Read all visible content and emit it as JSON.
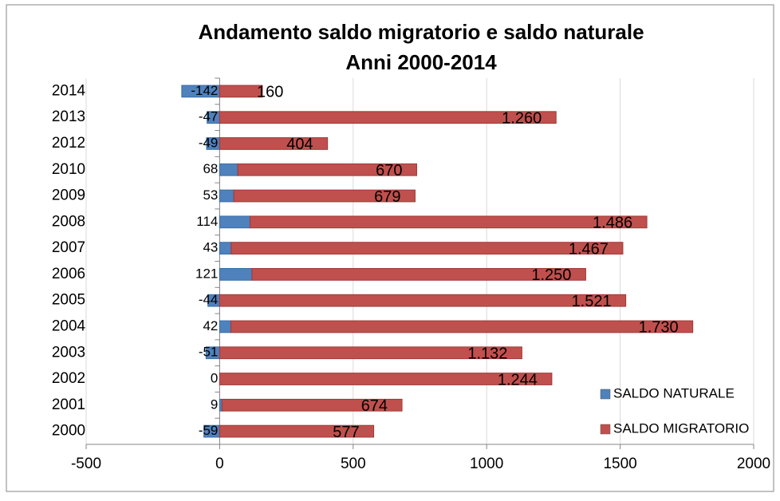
{
  "chart_data": {
    "type": "stacked-hbar",
    "title": [
      "Andamento saldo migratorio e saldo naturale",
      "Anni 2000-2014"
    ],
    "categories": [
      "2000",
      "2001",
      "2002",
      "2003",
      "2004",
      "2005",
      "2006",
      "2007",
      "2008",
      "2009",
      "2010",
      "2012",
      "2013",
      "2014"
    ],
    "series": [
      {
        "name": "SALDO NATURALE",
        "color": "#4f81bd",
        "values": [
          -59,
          9,
          0,
          -51,
          42,
          -44,
          121,
          43,
          114,
          53,
          68,
          -49,
          -47,
          -142
        ]
      },
      {
        "name": "SALDO MIGRATORIO",
        "color": "#c0504d",
        "values": [
          577,
          674,
          1244,
          1132,
          1730,
          1521,
          1250,
          1467,
          1486,
          679,
          670,
          404,
          1260,
          160
        ],
        "value_labels": [
          "577",
          "674",
          "1.244",
          "1.132",
          "1.730",
          "1.521",
          "1.250",
          "1.467",
          "1.486",
          "679",
          "670",
          "404",
          "1.260",
          "160"
        ]
      }
    ],
    "xlim": [
      -500,
      2000
    ],
    "xticks": [
      -500,
      0,
      500,
      1000,
      1500,
      2000
    ],
    "grid": true,
    "legend": "bottom-right"
  }
}
